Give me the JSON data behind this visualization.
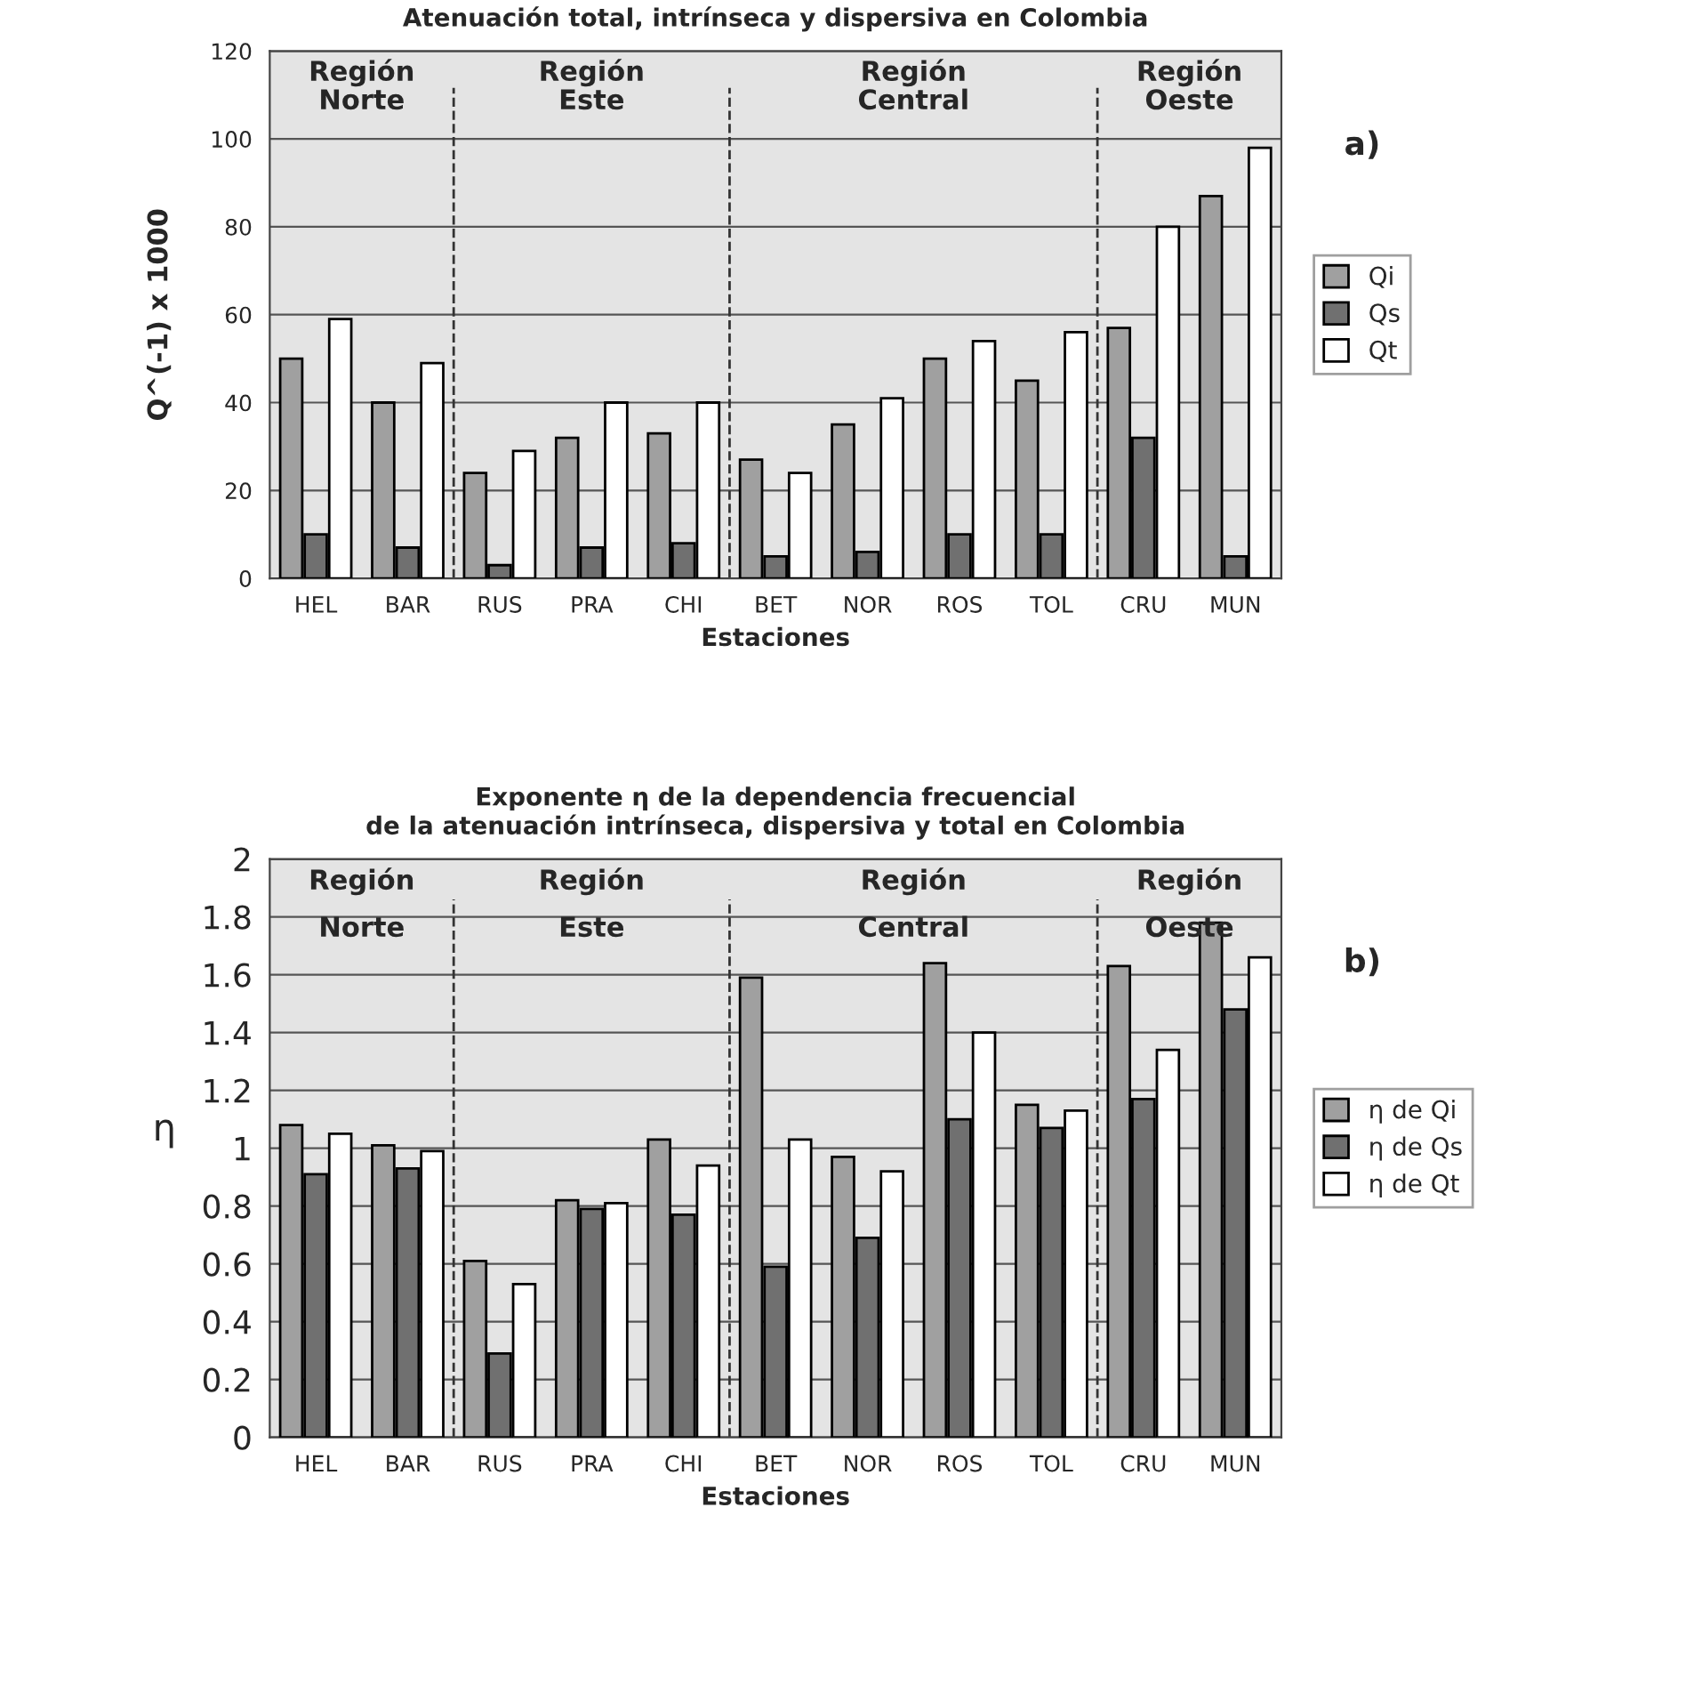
{
  "chart_data": [
    {
      "type": "bar",
      "title": "Atenuación total, intrínseca y dispersiva en Colombia",
      "xlabel": "Estaciones",
      "ylabel": "Q^(-1) x 1000",
      "categories": [
        "HEL",
        "BAR",
        "RUS",
        "PRA",
        "CHI",
        "BET",
        "NOR",
        "ROS",
        "TOL",
        "CRU",
        "MUN"
      ],
      "series": [
        {
          "name": "Qi",
          "color": "#a0a0a0",
          "values": [
            50,
            40,
            24,
            32,
            33,
            27,
            35,
            50,
            45,
            57,
            87
          ]
        },
        {
          "name": "Qs",
          "color": "#707070",
          "values": [
            10,
            7,
            3,
            7,
            8,
            5,
            6,
            10,
            10,
            32,
            5
          ]
        },
        {
          "name": "Qt",
          "color": "#ffffff",
          "values": [
            59,
            49,
            29,
            40,
            40,
            24,
            41,
            54,
            56,
            80,
            98
          ]
        }
      ],
      "ylim": [
        0,
        120
      ],
      "yticks": [
        0,
        20,
        40,
        60,
        80,
        100,
        120
      ],
      "grid": "y",
      "legend": "right",
      "annotations": [
        "Región\nNorte",
        "Región\nEste",
        "Región\nCentral",
        "Región\nOeste",
        "a)"
      ]
    },
    {
      "type": "bar",
      "title": "Exponente η de la dependencia frecuencial\nde la atenuación intrínseca, dispersiva y total en Colombia",
      "xlabel": "Estaciones",
      "ylabel": "η",
      "categories": [
        "HEL",
        "BAR",
        "RUS",
        "PRA",
        "CHI",
        "BET",
        "NOR",
        "ROS",
        "TOL",
        "CRU",
        "MUN"
      ],
      "series": [
        {
          "name": "η de Qi",
          "color": "#a0a0a0",
          "values": [
            1.08,
            1.01,
            0.61,
            0.82,
            1.03,
            1.59,
            0.97,
            1.64,
            1.15,
            1.63,
            1.78
          ]
        },
        {
          "name": "η de Qs",
          "color": "#707070",
          "values": [
            0.91,
            0.93,
            0.29,
            0.79,
            0.77,
            0.59,
            0.69,
            1.1,
            1.07,
            1.17,
            1.48
          ]
        },
        {
          "name": "η de Qt",
          "color": "#ffffff",
          "values": [
            1.05,
            0.99,
            0.53,
            0.81,
            0.94,
            1.03,
            0.92,
            1.4,
            1.13,
            1.34,
            1.66
          ]
        }
      ],
      "ylim": [
        0,
        2
      ],
      "yticks": [
        0,
        0.2,
        0.4,
        0.6,
        0.8,
        1,
        1.2,
        1.4,
        1.6,
        1.8,
        2
      ],
      "grid": "y",
      "legend": "right",
      "annotations": [
        "Región\nNorte",
        "Región\nEste",
        "Región\nCentral",
        "Región\nOeste",
        "b)"
      ]
    }
  ]
}
